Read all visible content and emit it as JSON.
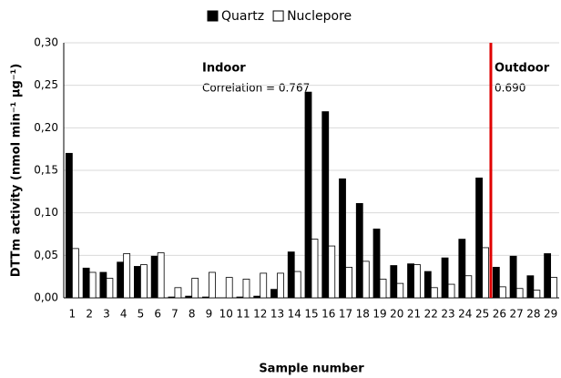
{
  "chart_data": {
    "type": "bar",
    "y_label": "DTTm activity (nmol min⁻¹ µg⁻¹)",
    "x_label": "Sample number",
    "annotations": [
      "Indoor",
      "Correlation = 0.767",
      "Outdoor",
      "0.690"
    ],
    "categories": [
      "1",
      "2",
      "3",
      "4",
      "5",
      "6",
      "7",
      "8",
      "9",
      "10",
      "11",
      "12",
      "13",
      "14",
      "15",
      "16",
      "17",
      "18",
      "19",
      "20",
      "21",
      "22",
      "23",
      "24",
      "25",
      "26",
      "27",
      "28",
      "29"
    ],
    "series": [
      {
        "name": "Quartz",
        "color": "#000000",
        "values": [
          0.17,
          0.035,
          0.03,
          0.042,
          0.037,
          0.049,
          0.001,
          0.002,
          0.001,
          0,
          0.001,
          0.002,
          0.01,
          0.054,
          0.242,
          0.219,
          0.14,
          0.111,
          0.081,
          0.038,
          0.04,
          0.031,
          0.047,
          0.069,
          0.141,
          0.036,
          0.049,
          0.026,
          0.052
        ]
      },
      {
        "name": "Nuclepore",
        "color": "#ffffff",
        "values": [
          0.058,
          0.03,
          0.023,
          0.052,
          0.039,
          0.053,
          0.012,
          0.023,
          0.03,
          0.024,
          0.022,
          0.029,
          0.029,
          0.031,
          0.069,
          0.061,
          0.036,
          0.043,
          0.022,
          0.017,
          0.039,
          0.012,
          0.016,
          0.026,
          0.059,
          0.013,
          0.011,
          0.009,
          0.024
        ]
      }
    ],
    "ylim": [
      0,
      0.3
    ],
    "yticks": [
      {
        "value": 0,
        "label": "0,00"
      },
      {
        "value": 0.05,
        "label": "0,05"
      },
      {
        "value": 0.1,
        "label": "0,10"
      },
      {
        "value": 0.15,
        "label": "0,15"
      },
      {
        "value": 0.2,
        "label": "0,20"
      },
      {
        "value": 0.25,
        "label": "0,25"
      },
      {
        "value": 0.3,
        "label": "0,30"
      }
    ],
    "grid": true,
    "legend": "top"
  }
}
